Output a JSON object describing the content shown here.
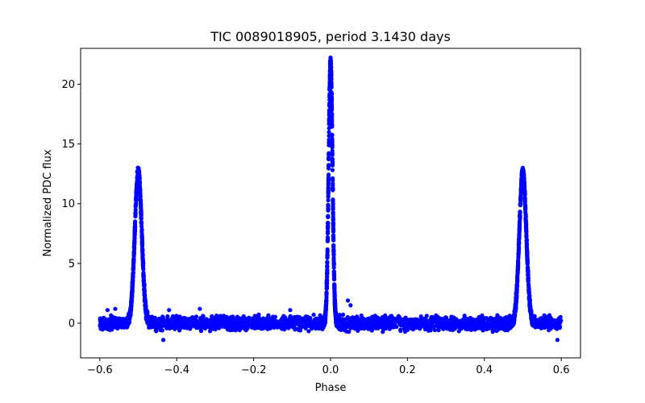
{
  "chart_data": {
    "type": "scatter",
    "title": "TIC 0089018905, period 3.1430 days",
    "xlabel": "Phase",
    "ylabel": "Normalized PDC flux",
    "xlim": [
      -0.65,
      0.65
    ],
    "ylim": [
      -2.9,
      23.0
    ],
    "xticks": [
      -0.6,
      -0.4,
      -0.2,
      0.0,
      0.2,
      0.4,
      0.6
    ],
    "xtick_labels": [
      "−0.6",
      "−0.4",
      "−0.2",
      "0.0",
      "0.2",
      "0.4",
      "0.6"
    ],
    "yticks": [
      0,
      5,
      10,
      15,
      20
    ],
    "ytick_labels": [
      "0",
      "5",
      "10",
      "15",
      "20"
    ],
    "grid": false,
    "series": [
      {
        "name": "PDC flux",
        "color": "#0000ff",
        "x_range": [
          -0.6,
          0.6
        ],
        "baseline": 0.0,
        "noise_amplitude": 0.5,
        "peaks": [
          {
            "center": -0.5,
            "height": 12.7,
            "width": 0.009
          },
          {
            "center": 0.0,
            "height": 21.9,
            "width": 0.005
          },
          {
            "center": 0.5,
            "height": 12.7,
            "width": 0.009
          }
        ],
        "outliers": [
          {
            "x": -0.58,
            "y": 1.1
          },
          {
            "x": -0.56,
            "y": 1.2
          },
          {
            "x": -0.435,
            "y": -1.4
          },
          {
            "x": -0.42,
            "y": 1.1
          },
          {
            "x": -0.34,
            "y": 1.2
          },
          {
            "x": -0.105,
            "y": 1.1
          },
          {
            "x": 0.045,
            "y": 1.9
          },
          {
            "x": 0.052,
            "y": 1.5
          },
          {
            "x": 0.59,
            "y": -1.4
          }
        ]
      }
    ]
  }
}
